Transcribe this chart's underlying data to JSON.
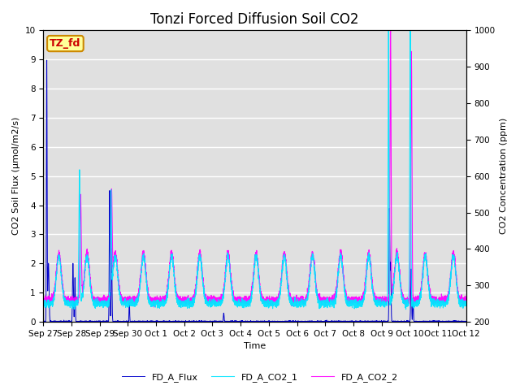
{
  "title": "Tonzi Forced Diffusion Soil CO2",
  "xlabel": "Time",
  "ylabel_left": "CO2 Soil Flux (μmol/m2/s)",
  "ylabel_right": "CO2 Concentration (ppm)",
  "ylim_left": [
    0.0,
    10.0
  ],
  "ylim_right": [
    200,
    1000
  ],
  "annotation_text": "TZ_fd",
  "annotation_color": "#cc0000",
  "annotation_bg": "#ffff99",
  "line_colors": {
    "FD_A_Flux": "#0000cc",
    "FD_A_CO2_1": "#00e5ff",
    "FD_A_CO2_2": "#ff00ff"
  },
  "bg_color": "#e0e0e0",
  "tick_labels": [
    "Sep 27",
    "Sep 28",
    "Sep 29",
    "Sep 30",
    "Oct 1",
    "Oct 2",
    "Oct 3",
    "Oct 4",
    "Oct 5",
    "Oct 6",
    "Oct 7",
    "Oct 8",
    "Oct 9",
    "Oct 10",
    "Oct 11",
    "Oct 12"
  ],
  "title_fontsize": 12,
  "axis_label_fontsize": 8,
  "tick_fontsize": 7.5,
  "legend_fontsize": 8
}
